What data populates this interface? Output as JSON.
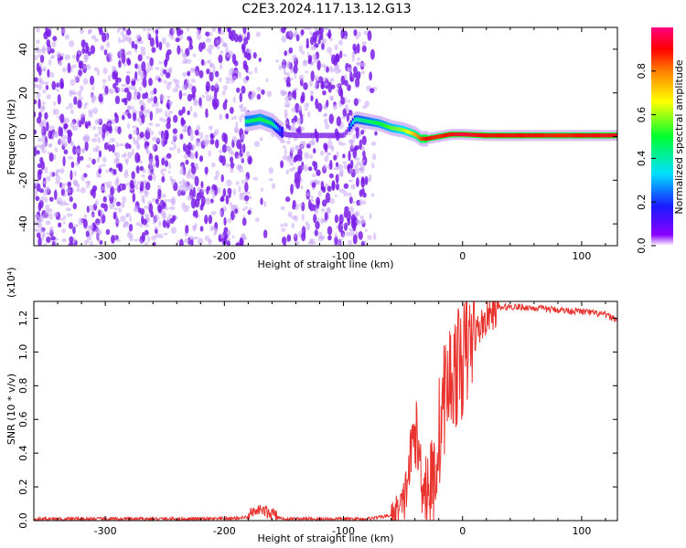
{
  "title": "C2E3.2024.117.13.12.G13",
  "colors": {
    "snr_line": "#e8332e",
    "speckle": "#7a1fe8",
    "speckle_light": "#c9a6f5"
  },
  "chart_data": [
    {
      "type": "heatmap",
      "name": "spectrogram",
      "xlabel": "Height of straight line (km)",
      "ylabel": "Frequency (Hz)",
      "xlim": [
        -360,
        130
      ],
      "ylim": [
        -50,
        50
      ],
      "xticks": [
        -300,
        -200,
        -100,
        0,
        100
      ],
      "xtick_labels": [
        "-300",
        "-200",
        "-100",
        "0",
        "100"
      ],
      "yticks": [
        -40,
        -20,
        0,
        20,
        40
      ],
      "ytick_labels": [
        "-40",
        "-20",
        "0",
        "20",
        "40"
      ],
      "noise_region_km": [
        -360,
        -82
      ],
      "gap_region_km": [
        -178,
        -152
      ],
      "signal_track": {
        "x": [
          -180,
          -170,
          -160,
          -150,
          -140,
          -120,
          -100,
          -90,
          -80,
          -70,
          -60,
          -50,
          -40,
          -35,
          -30,
          -20,
          -10,
          0,
          20,
          40,
          60,
          80,
          100,
          130
        ],
        "y": [
          7,
          8,
          6,
          1,
          0.5,
          0.5,
          0.5,
          8,
          7,
          6,
          4,
          3,
          1,
          -1,
          -1,
          0,
          1,
          1,
          0.5,
          0.5,
          0.5,
          0.5,
          0.5,
          0.5
        ],
        "amplitude": [
          0.45,
          0.5,
          0.45,
          0.1,
          0.05,
          0.05,
          0.05,
          0.4,
          0.45,
          0.5,
          0.55,
          0.6,
          0.75,
          0.85,
          0.9,
          0.88,
          0.9,
          0.95,
          0.9,
          0.9,
          0.9,
          0.88,
          0.9,
          0.92
        ]
      },
      "colorbar": {
        "label": "Normalized spectral amplitude",
        "range": [
          0,
          1
        ],
        "ticks": [
          0.0,
          0.2,
          0.4,
          0.6,
          0.8
        ],
        "tick_labels": [
          "0.0",
          "0.2",
          "0.4",
          "0.6",
          "0.8"
        ]
      }
    },
    {
      "type": "line",
      "name": "snr",
      "xlabel": "Height of straight line (km)",
      "ylabel": "SNR (10 * v/v)",
      "y_multiplier_label": "(x10⁴)",
      "xlim": [
        -360,
        130
      ],
      "ylim": [
        0,
        1.3
      ],
      "xticks": [
        -300,
        -200,
        -100,
        0,
        100
      ],
      "xtick_labels": [
        "-300",
        "-200",
        "-100",
        "0",
        "100"
      ],
      "yticks": [
        0.0,
        0.2,
        0.4,
        0.6,
        0.8,
        1.0,
        1.2
      ],
      "ytick_labels": [
        "0.0",
        "0.2",
        "0.4",
        "0.6",
        "0.8",
        "1.0",
        "1.2"
      ],
      "series": [
        {
          "name": "SNR",
          "x": [
            -360,
            -300,
            -250,
            -200,
            -180,
            -170,
            -160,
            -150,
            -100,
            -80,
            -60,
            -50,
            -45,
            -40,
            -35,
            -30,
            -25,
            -20,
            -15,
            -10,
            -5,
            0,
            10,
            20,
            30,
            40,
            60,
            80,
            100,
            120,
            130
          ],
          "y": [
            0.01,
            0.01,
            0.01,
            0.01,
            0.02,
            0.05,
            0.03,
            0.01,
            0.01,
            0.01,
            0.03,
            0.08,
            0.3,
            0.55,
            0.3,
            0.2,
            0.2,
            0.5,
            0.75,
            0.85,
            0.9,
            0.95,
            1.1,
            1.2,
            1.26,
            1.27,
            1.26,
            1.25,
            1.24,
            1.22,
            1.19
          ]
        }
      ]
    }
  ]
}
